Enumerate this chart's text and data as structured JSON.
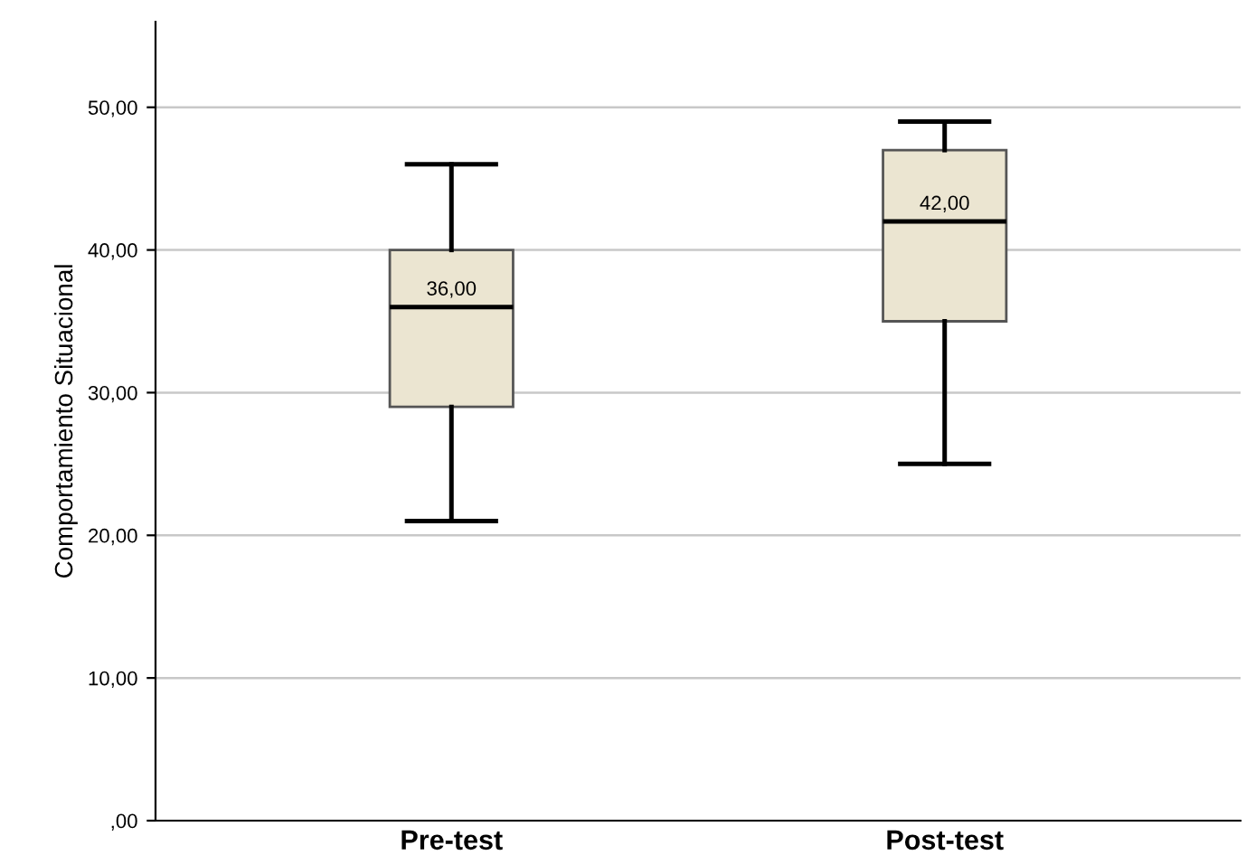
{
  "chart_data": {
    "type": "box",
    "ylabel": "Comportamiento Situacional",
    "categories": [
      "Pre-test",
      "Post-test"
    ],
    "boxes": [
      {
        "low": 21,
        "q1": 29,
        "median": 36,
        "q3": 40,
        "high": 46
      },
      {
        "low": 25,
        "q1": 35,
        "median": 42,
        "q3": 47,
        "high": 49
      }
    ],
    "color": "#ebe5d1",
    "annotations": [
      {
        "text": "36,00",
        "x": "Pre-test",
        "y": 36
      },
      {
        "text": "42,00",
        "x": "Post-test",
        "y": 42
      }
    ],
    "ylim": [
      0,
      56
    ],
    "yticks": [
      {
        "value": 0,
        "label": ",00"
      },
      {
        "value": 10,
        "label": "10,00"
      },
      {
        "value": 20,
        "label": "20,00"
      },
      {
        "value": 30,
        "label": "30,00"
      },
      {
        "value": 40,
        "label": "40,00"
      },
      {
        "value": 50,
        "label": "50,00"
      }
    ],
    "grid": "y"
  }
}
